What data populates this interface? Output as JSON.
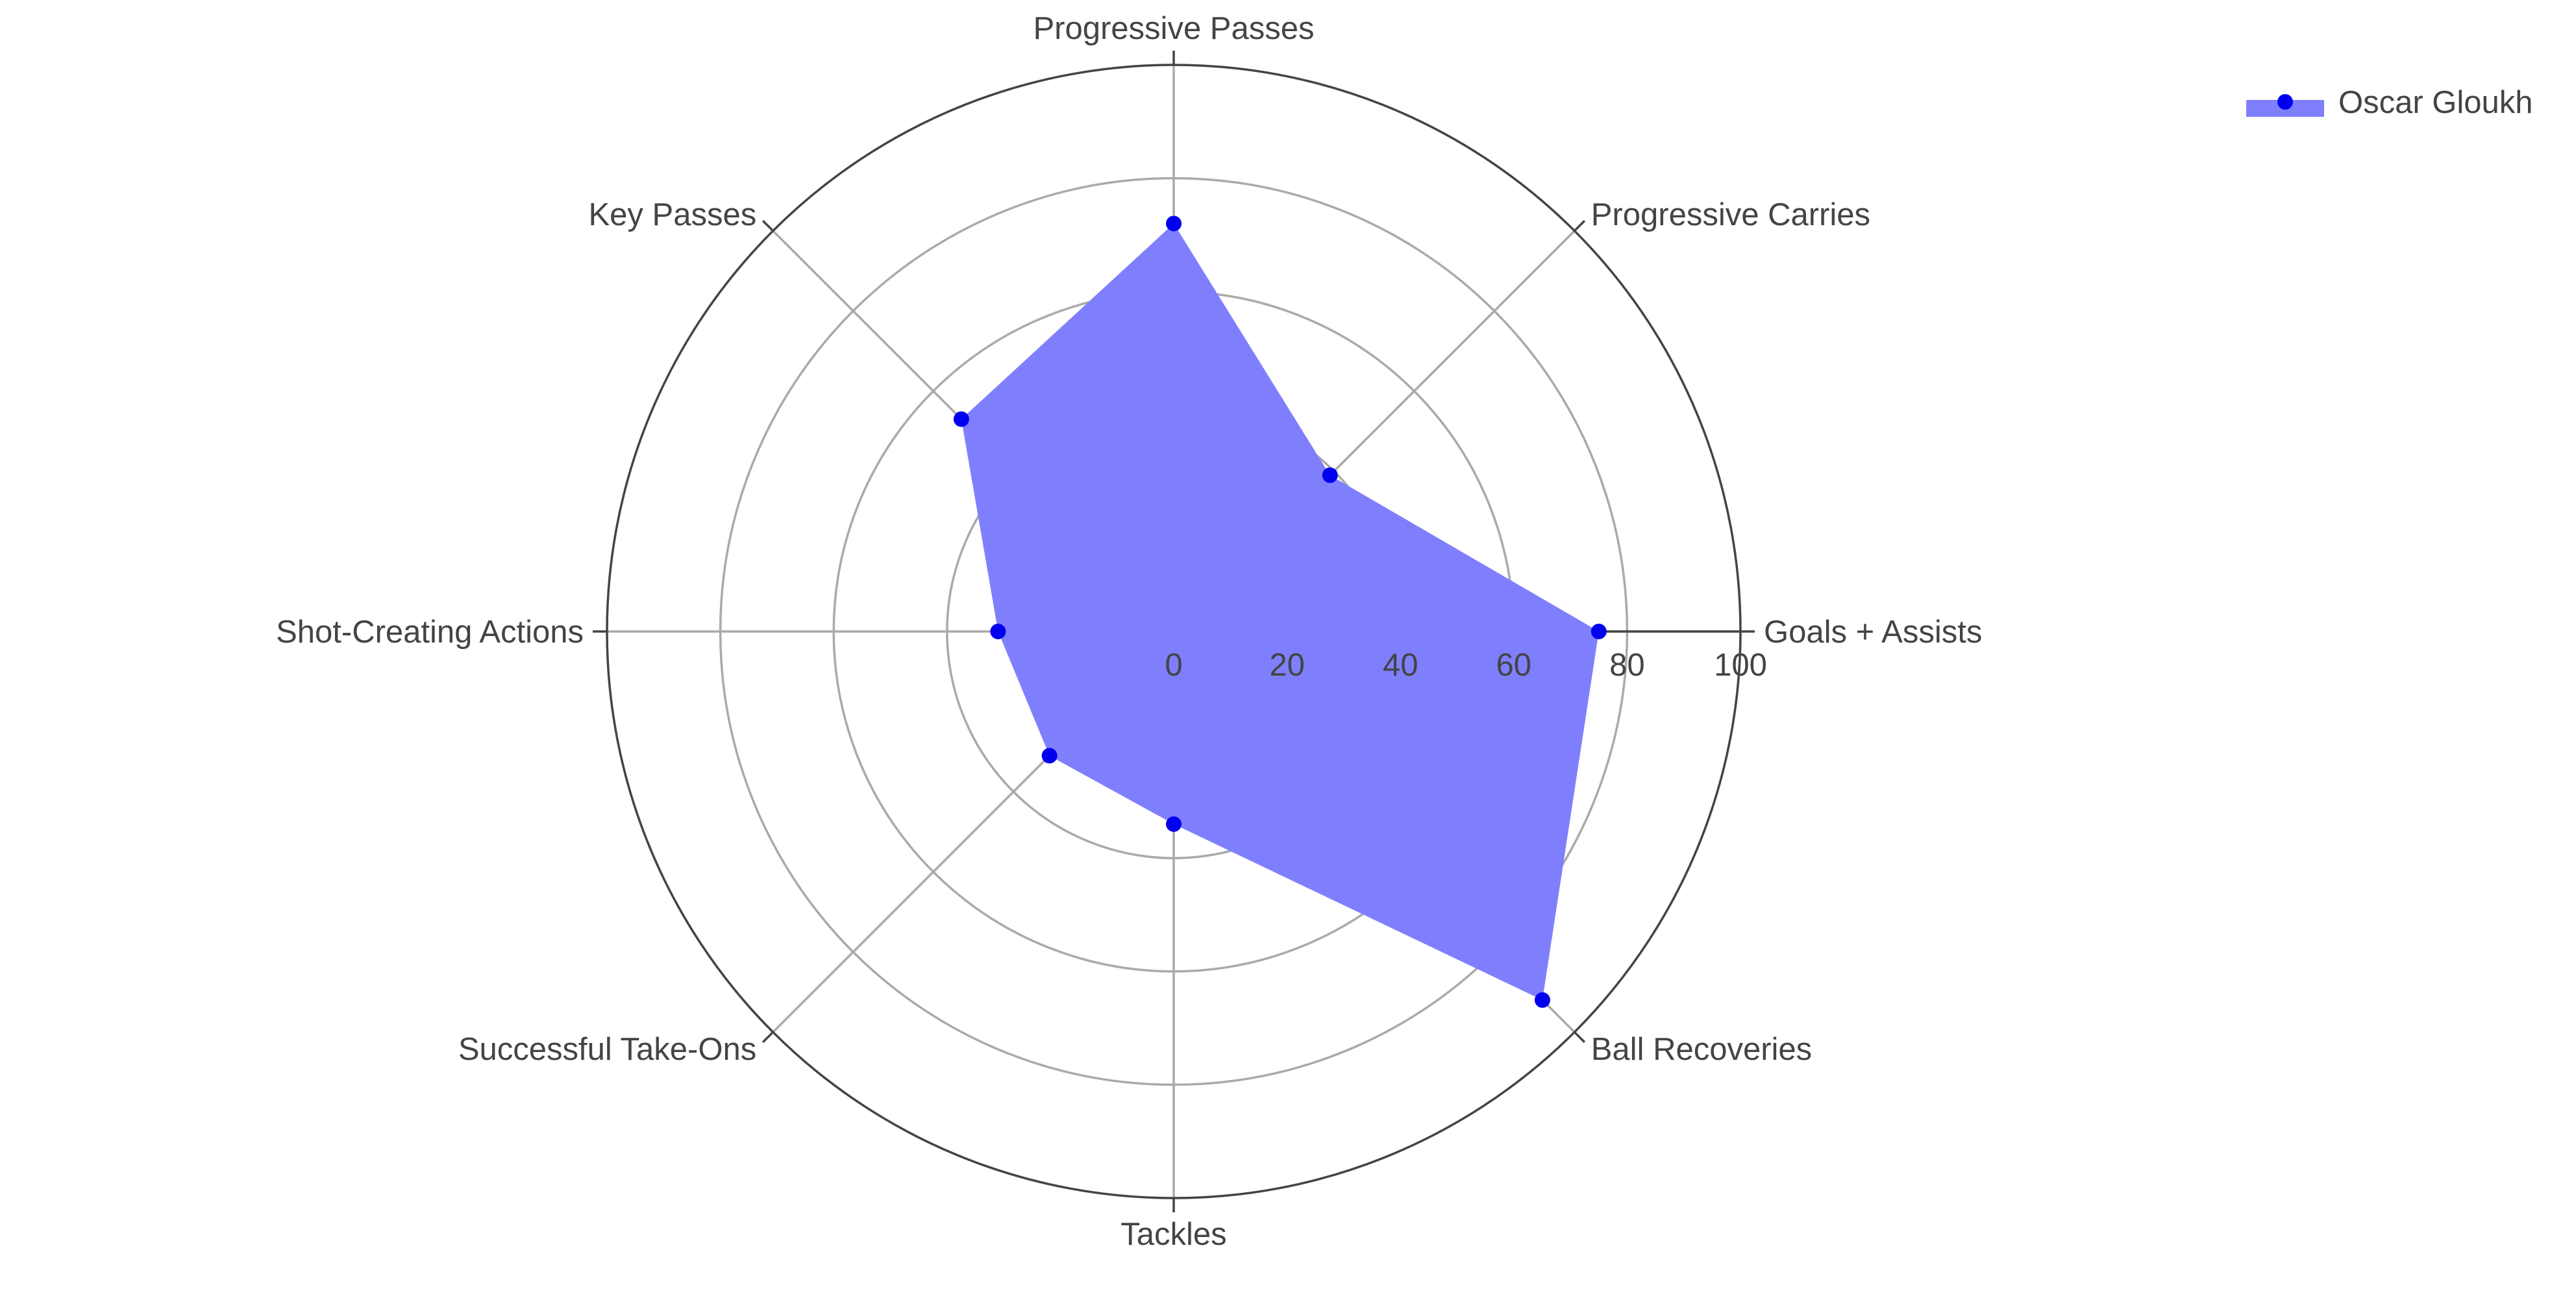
{
  "chart_data": {
    "type": "radar",
    "categories": [
      "Goals + Assists",
      "Progressive Carries",
      "Progressive Passes",
      "Key Passes",
      "Shot-Creating Actions",
      "Successful Take-Ons",
      "Tackles",
      "Ball Recoveries"
    ],
    "series": [
      {
        "name": "Oscar Gloukh",
        "values": [
          75,
          39,
          72,
          53,
          31,
          31,
          34,
          92
        ],
        "fill_color": "#7f7ffe",
        "marker_color": "#0000ee"
      }
    ],
    "radial_range": [
      0,
      100
    ],
    "radial_ticks": [
      "0",
      "20",
      "40",
      "60",
      "80",
      "100"
    ],
    "grid": true,
    "legend_position": "top-right"
  }
}
